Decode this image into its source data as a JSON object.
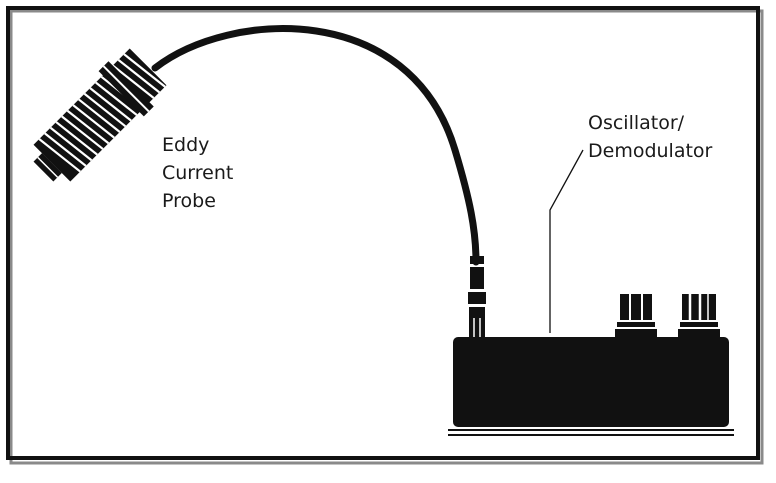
{
  "labels": {
    "probe": [
      "Eddy",
      "Current",
      "Probe"
    ],
    "instrument": [
      "Oscillator/",
      "Demodulator"
    ]
  },
  "colors": {
    "ink": "#111111",
    "background": "#ffffff",
    "frame_shadow": "#8a8a8a"
  }
}
